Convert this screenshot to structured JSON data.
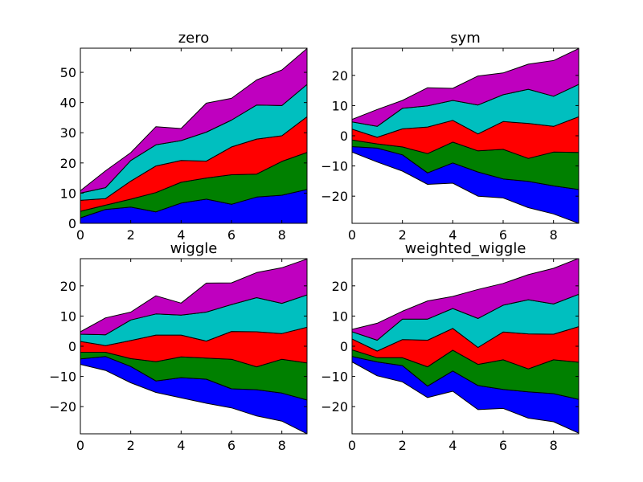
{
  "figure": {
    "background": "#ffffff"
  },
  "chart_data": [
    {
      "type": "area",
      "title": "zero",
      "xlabel": "",
      "ylabel": "",
      "grid": false,
      "xlim": [
        0,
        9
      ],
      "ylim": [
        0,
        58
      ],
      "xticks": [
        0,
        2,
        4,
        6,
        8
      ],
      "xtick_labels": [
        "0",
        "2",
        "4",
        "6",
        "8"
      ],
      "yticks": [
        0,
        10,
        20,
        30,
        40,
        50
      ],
      "ytick_labels": [
        "0",
        "10",
        "20",
        "30",
        "40",
        "50"
      ],
      "baseline": [
        0,
        0,
        0,
        0,
        0,
        0,
        0,
        0,
        0,
        0
      ],
      "x": [
        0,
        1,
        2,
        3,
        4,
        5,
        6,
        7,
        8,
        9
      ],
      "series": [
        {
          "color": "#0000ff",
          "values": [
            1.8,
            4.6,
            5.4,
            3.8,
            6.7,
            8.0,
            6.3,
            8.7,
            9.3,
            11.2
          ]
        },
        {
          "color": "#008000",
          "values": [
            2.2,
            1.4,
            2.6,
            6.4,
            6.9,
            7.0,
            9.8,
            7.6,
            11.2,
            12.3
          ]
        },
        {
          "color": "#ff0000",
          "values": [
            3.6,
            2.2,
            6.0,
            8.8,
            7.2,
            5.6,
            9.2,
            11.6,
            8.5,
            11.8
          ]
        },
        {
          "color": "#00bfbf",
          "values": [
            2.4,
            3.6,
            6.8,
            7.0,
            6.6,
            9.6,
            8.9,
            11.3,
            10.0,
            10.7
          ]
        },
        {
          "color": "#bf00bf",
          "values": [
            0.8,
            5.6,
            2.6,
            6.0,
            4.0,
            9.6,
            7.2,
            8.3,
            11.8,
            11.9
          ]
        }
      ]
    },
    {
      "type": "area",
      "title": "sym",
      "xlabel": "",
      "ylabel": "",
      "grid": false,
      "xlim": [
        0,
        9
      ],
      "ylim": [
        -29,
        29
      ],
      "xticks": [
        0,
        2,
        4,
        6,
        8
      ],
      "xtick_labels": [
        "0",
        "2",
        "4",
        "6",
        "8"
      ],
      "yticks": [
        -20,
        -10,
        0,
        10,
        20
      ],
      "ytick_labels": [
        "−20",
        "−10",
        "0",
        "10",
        "20"
      ],
      "baseline": [
        -5.4,
        -8.7,
        -11.7,
        -16.1,
        -15.7,
        -20.0,
        -20.6,
        -23.8,
        -25.9,
        -29.0
      ],
      "x": [
        0,
        1,
        2,
        3,
        4,
        5,
        6,
        7,
        8,
        9
      ],
      "series": [
        {
          "color": "#0000ff",
          "values": [
            1.8,
            4.6,
            5.4,
            3.8,
            6.7,
            8.0,
            6.3,
            8.7,
            9.3,
            11.2
          ]
        },
        {
          "color": "#008000",
          "values": [
            2.2,
            1.4,
            2.6,
            6.4,
            6.9,
            7.0,
            9.8,
            7.6,
            11.2,
            12.3
          ]
        },
        {
          "color": "#ff0000",
          "values": [
            3.6,
            2.2,
            6.0,
            8.8,
            7.2,
            5.6,
            9.2,
            11.6,
            8.5,
            11.8
          ]
        },
        {
          "color": "#00bfbf",
          "values": [
            2.4,
            3.6,
            6.8,
            7.0,
            6.6,
            9.6,
            8.9,
            11.3,
            10.0,
            10.7
          ]
        },
        {
          "color": "#bf00bf",
          "values": [
            0.8,
            5.6,
            2.6,
            6.0,
            4.0,
            9.6,
            7.2,
            8.3,
            11.8,
            11.9
          ]
        }
      ]
    },
    {
      "type": "area",
      "title": "wiggle",
      "xlabel": "",
      "ylabel": "",
      "grid": false,
      "xlim": [
        0,
        9
      ],
      "ylim": [
        -29,
        29
      ],
      "xticks": [
        0,
        2,
        4,
        6,
        8
      ],
      "xtick_labels": [
        "0",
        "2",
        "4",
        "6",
        "8"
      ],
      "yticks": [
        -20,
        -10,
        0,
        10,
        20
      ],
      "ytick_labels": [
        "−20",
        "−10",
        "0",
        "10",
        "20"
      ],
      "baseline": [
        -6.0,
        -8.0,
        -12.1,
        -15.3,
        -17.1,
        -18.9,
        -20.4,
        -23.1,
        -24.8,
        -29.0
      ],
      "x": [
        0,
        1,
        2,
        3,
        4,
        5,
        6,
        7,
        8,
        9
      ],
      "series": [
        {
          "color": "#0000ff",
          "values": [
            1.8,
            4.6,
            5.4,
            3.8,
            6.7,
            8.0,
            6.3,
            8.7,
            9.3,
            11.2
          ]
        },
        {
          "color": "#008000",
          "values": [
            2.2,
            1.4,
            2.6,
            6.4,
            6.9,
            7.0,
            9.8,
            7.6,
            11.2,
            12.3
          ]
        },
        {
          "color": "#ff0000",
          "values": [
            3.6,
            2.2,
            6.0,
            8.8,
            7.2,
            5.6,
            9.2,
            11.6,
            8.5,
            11.8
          ]
        },
        {
          "color": "#00bfbf",
          "values": [
            2.4,
            3.6,
            6.8,
            7.0,
            6.6,
            9.6,
            8.9,
            11.3,
            10.0,
            10.7
          ]
        },
        {
          "color": "#bf00bf",
          "values": [
            0.8,
            5.6,
            2.6,
            6.0,
            4.0,
            9.6,
            7.2,
            8.3,
            11.8,
            11.9
          ]
        }
      ]
    },
    {
      "type": "area",
      "title": "weighted_wiggle",
      "xlabel": "",
      "ylabel": "",
      "grid": false,
      "xlim": [
        0,
        9
      ],
      "ylim": [
        -29,
        29
      ],
      "xticks": [
        0,
        2,
        4,
        6,
        8
      ],
      "xtick_labels": [
        "0",
        "2",
        "4",
        "6",
        "8"
      ],
      "yticks": [
        -20,
        -10,
        0,
        10,
        20
      ],
      "ytick_labels": [
        "−20",
        "−10",
        "0",
        "10",
        "20"
      ],
      "baseline": [
        -5.2,
        -9.8,
        -11.8,
        -17.0,
        -14.9,
        -21.0,
        -20.6,
        -23.8,
        -25.0,
        -28.8
      ],
      "x": [
        0,
        1,
        2,
        3,
        4,
        5,
        6,
        7,
        8,
        9
      ],
      "series": [
        {
          "color": "#0000ff",
          "values": [
            1.8,
            4.6,
            5.4,
            3.8,
            6.7,
            8.0,
            6.3,
            8.7,
            9.3,
            11.2
          ]
        },
        {
          "color": "#008000",
          "values": [
            2.2,
            1.4,
            2.6,
            6.4,
            6.9,
            7.0,
            9.8,
            7.6,
            11.2,
            12.3
          ]
        },
        {
          "color": "#ff0000",
          "values": [
            3.6,
            2.2,
            6.0,
            8.8,
            7.2,
            5.6,
            9.2,
            11.6,
            8.5,
            11.8
          ]
        },
        {
          "color": "#00bfbf",
          "values": [
            2.4,
            3.6,
            6.8,
            7.0,
            6.6,
            9.6,
            8.9,
            11.3,
            10.0,
            10.7
          ]
        },
        {
          "color": "#bf00bf",
          "values": [
            0.8,
            5.6,
            2.6,
            6.0,
            4.0,
            9.6,
            7.2,
            8.3,
            11.8,
            11.9
          ]
        }
      ]
    }
  ]
}
